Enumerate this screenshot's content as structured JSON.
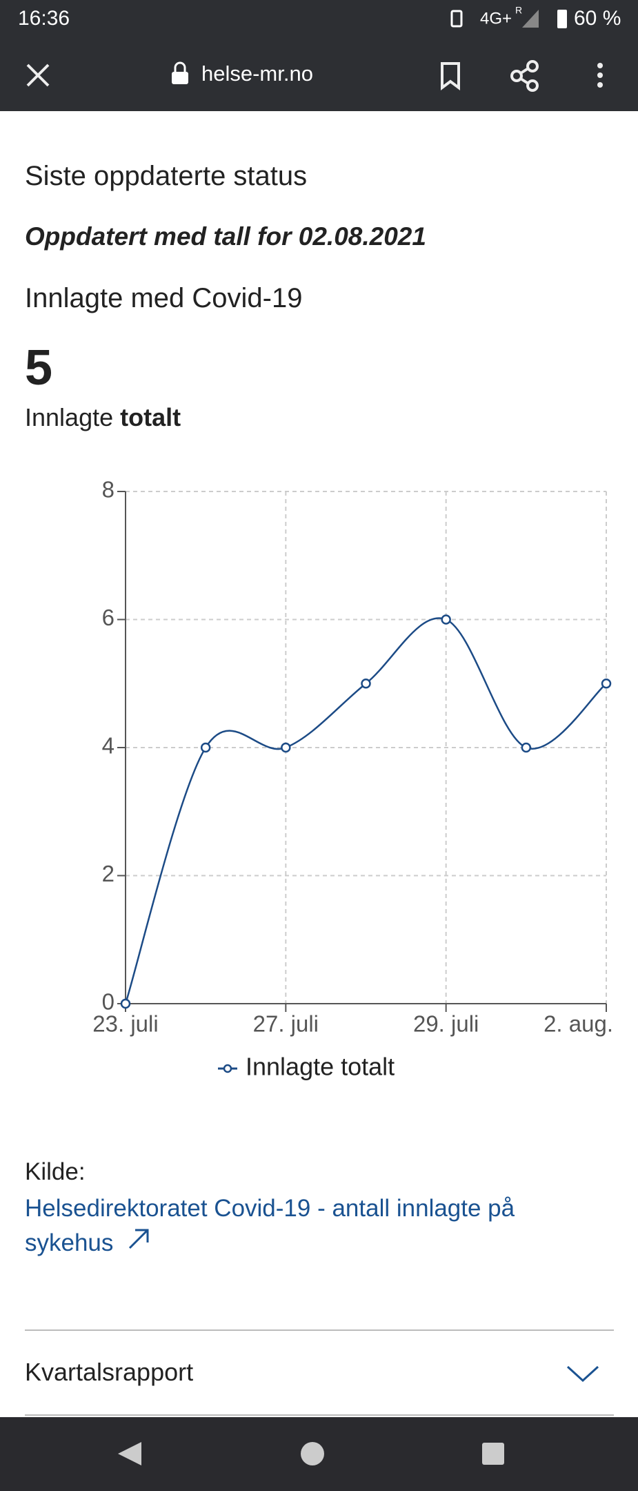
{
  "status_bar": {
    "time": "16:36",
    "network": "4G+",
    "roaming": "R",
    "battery": "60 %"
  },
  "browser": {
    "url": "helse-mr.no"
  },
  "content": {
    "heading": "Siste oppdaterte status",
    "updated": "Oppdatert med tall for 02.08.2021",
    "subheading": "Innlagte med Covid-19",
    "big_number": "5",
    "caption_plain": "Innlagte",
    "caption_bold": "totalt",
    "source_label": "Kilde:",
    "source_link": "Helsedirektoratet Covid-19 - antall innlagte på sykehus",
    "accordion": "Kvartalsrapport"
  },
  "chart_data": {
    "type": "line",
    "categories": [
      "23. juli",
      null,
      "27. juli",
      null,
      "29. juli",
      null,
      "2. aug."
    ],
    "series": [
      {
        "name": "Innlagte totalt",
        "color": "#1c4b86",
        "values": [
          0,
          4,
          4,
          5,
          6,
          4,
          5
        ]
      }
    ],
    "ylim": [
      0,
      8
    ],
    "yticks": [
      0,
      2,
      4,
      6,
      8
    ],
    "grid": true,
    "legend": "bottom"
  }
}
